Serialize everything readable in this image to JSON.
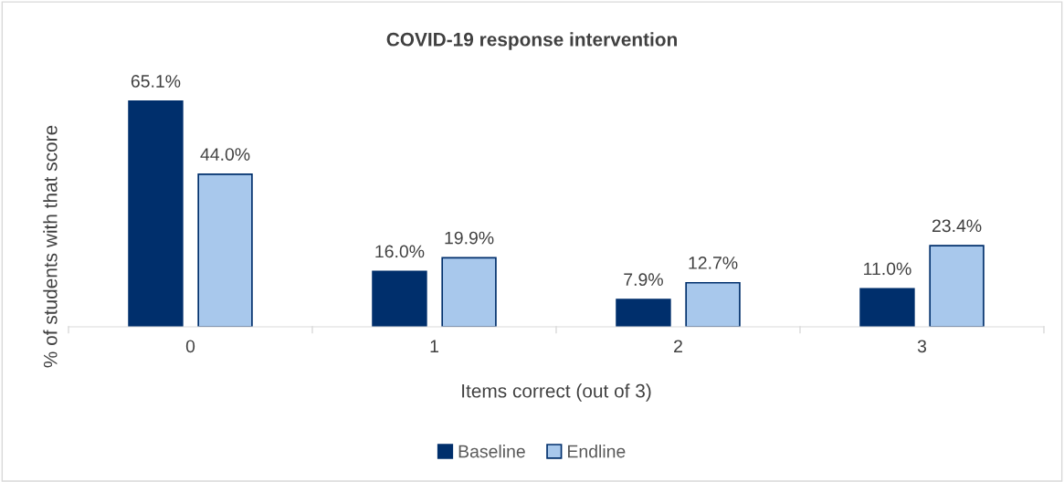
{
  "chart_data": {
    "type": "bar",
    "title": "COVID-19 response intervention",
    "xlabel": "Items correct (out of 3)",
    "ylabel": "% of students with that score",
    "categories": [
      "0",
      "1",
      "2",
      "3"
    ],
    "series": [
      {
        "name": "Baseline",
        "color": "#002f6c",
        "values": [
          65.1,
          16.0,
          7.9,
          11.0
        ],
        "value_labels": [
          "65.1%",
          "16.0%",
          "7.9%",
          "11.0%"
        ]
      },
      {
        "name": "Endline",
        "color": "#a8c8ec",
        "values": [
          44.0,
          19.9,
          12.7,
          23.4
        ],
        "value_labels": [
          "44.0%",
          "19.9%",
          "12.7%",
          "23.4%"
        ]
      }
    ],
    "tick_labels": "x",
    "grid": false,
    "legend": "bottom"
  }
}
